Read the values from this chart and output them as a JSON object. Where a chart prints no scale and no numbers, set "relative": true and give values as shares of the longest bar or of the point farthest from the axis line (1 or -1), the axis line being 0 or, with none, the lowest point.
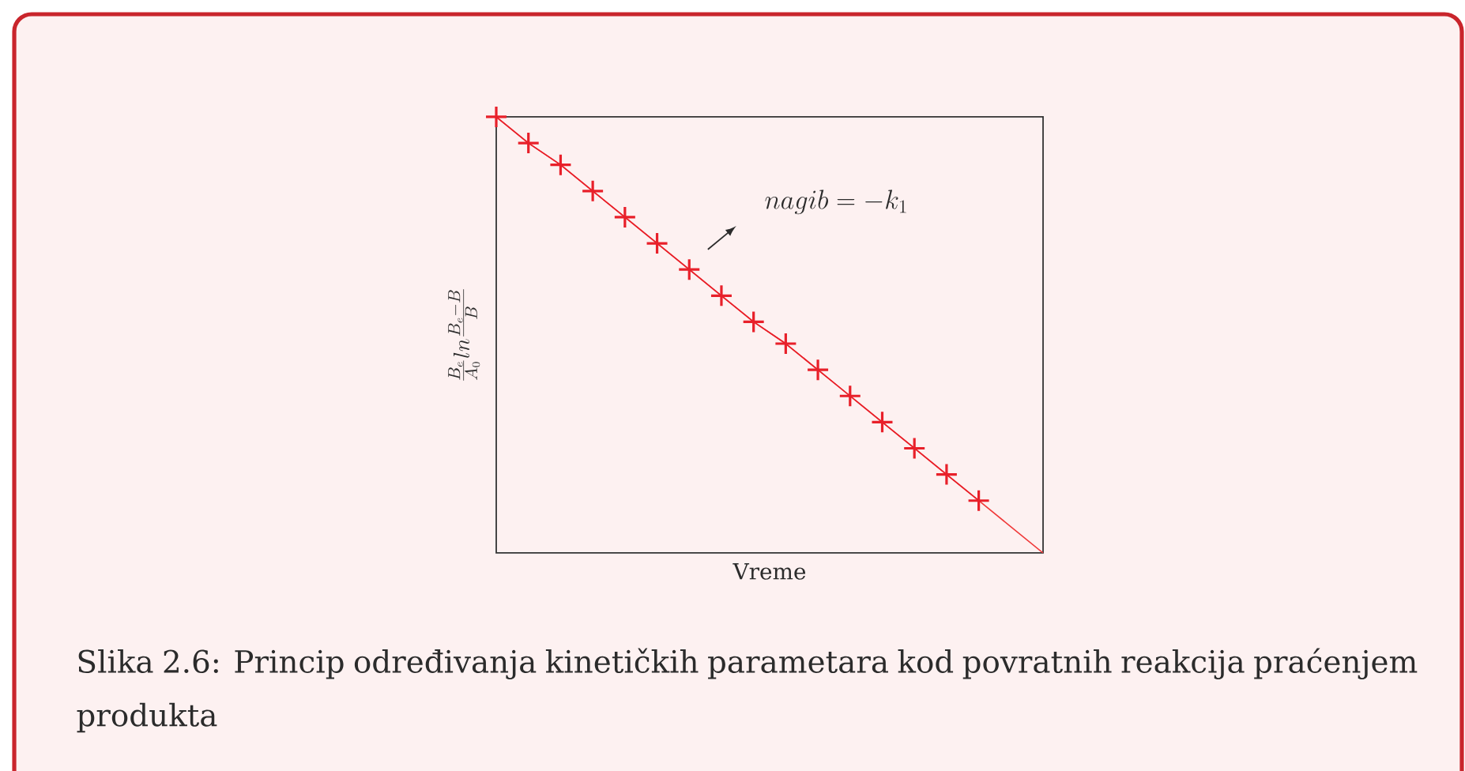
{
  "chart_data": {
    "type": "line",
    "relative": true,
    "xlabel": "Vreme",
    "ylabel": "\\frac{B_e}{A_0} ln \\frac{B_e - B}{B}",
    "annotations": [
      "nagib = -k_1",
      "Slika 2.6: Princip određivanja kinetičkih parametara kod povratnih reakcija praćenjem produkta"
    ],
    "categories": [
      null,
      null,
      null,
      null,
      null,
      null,
      null,
      null,
      null,
      null,
      null,
      null,
      null,
      null,
      null,
      null,
      null,
      null
    ],
    "series": [
      {
        "color": "#f03a3a",
        "marker": "none",
        "line_style": "solid",
        "values": [
          1,
          0.94,
          0.89,
          0.83,
          0.77,
          0.71,
          0.65,
          0.59,
          0.53,
          0.48,
          0.42,
          0.36,
          0.3,
          0.24,
          0.18,
          0.12,
          0.06,
          0
        ]
      },
      {
        "color": "#e8202a",
        "marker": "cross",
        "line_style": "solid",
        "values": [
          1,
          0.94,
          0.89,
          0.83,
          0.77,
          0.71,
          0.65,
          0.59,
          0.53,
          0.48,
          0.42,
          0.36,
          0.3,
          0.24,
          0.18,
          0.12,
          null,
          null
        ]
      }
    ]
  }
}
